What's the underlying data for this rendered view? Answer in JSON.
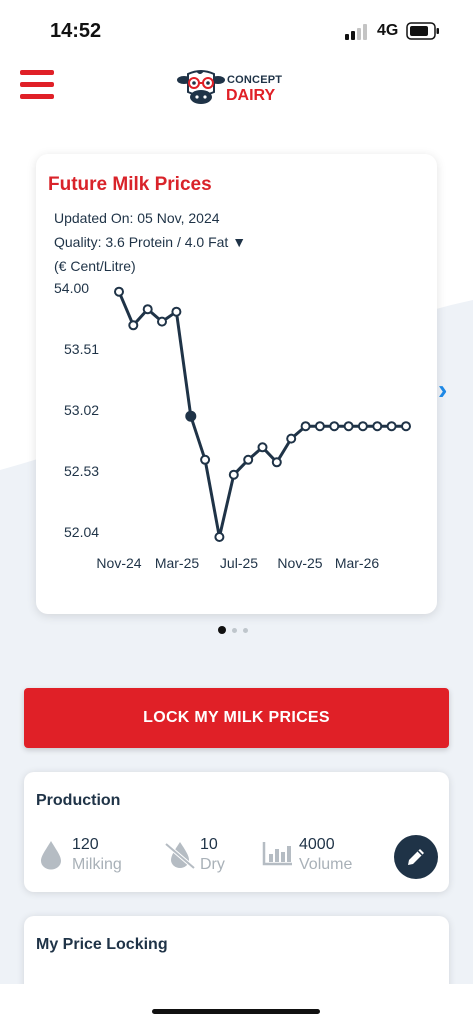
{
  "status_bar": {
    "time": "14:52",
    "network": "4G"
  },
  "header": {
    "logo_line1": "CONCEPT",
    "logo_line2": "DAIRY"
  },
  "chart_card": {
    "title": "Future Milk Prices",
    "updated_on": "Updated On: 05 Nov, 2024",
    "quality": "Quality: 3.6 Protein / 4.0 Fat ▼",
    "unit": "(€ Cent/Litre)"
  },
  "chart_data": {
    "type": "line",
    "title": "Future Milk Prices",
    "ylabel": "(€ Cent/Litre)",
    "y_ticks": [
      "54.00",
      "53.51",
      "53.02",
      "52.53",
      "52.04"
    ],
    "x_ticks": [
      "Nov-24",
      "Mar-25",
      "Jul-25",
      "Nov-25",
      "Mar-26"
    ],
    "ylim": [
      52.04,
      54.0
    ],
    "series": [
      {
        "values": [
          53.97,
          53.7,
          53.83,
          53.73,
          53.81,
          52.97,
          52.62,
          52.0,
          52.5,
          52.62,
          52.72,
          52.6,
          52.79,
          52.89,
          52.89,
          52.89,
          52.89,
          52.89,
          52.89,
          52.89,
          52.89
        ]
      }
    ],
    "colors": {
      "line": "#1f3347",
      "marker_fill": "#ffffff"
    }
  },
  "pager": {
    "count": 3,
    "active": 0
  },
  "lock_button": {
    "label": "LOCK MY MILK PRICES"
  },
  "production": {
    "title": "Production",
    "stats": [
      {
        "value": "120",
        "label": "Milking",
        "icon": "drop-icon"
      },
      {
        "value": "10",
        "label": "Dry",
        "icon": "no-drop-icon"
      },
      {
        "value": "4000",
        "label": "Volume",
        "icon": "bar-chart-icon"
      }
    ]
  },
  "price_locking": {
    "title": "My Price Locking"
  },
  "colors": {
    "accent": "#e02027",
    "navy": "#1f3347",
    "link_blue": "#1e88e5"
  }
}
